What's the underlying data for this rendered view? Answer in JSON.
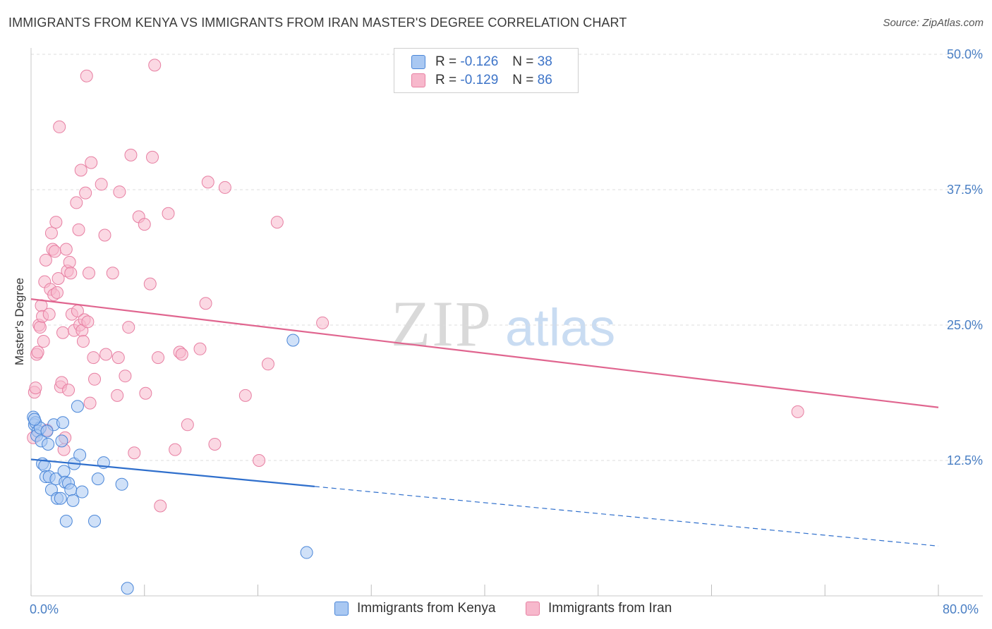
{
  "title": "IMMIGRANTS FROM KENYA VS IMMIGRANTS FROM IRAN MASTER'S DEGREE CORRELATION CHART",
  "source": "Source: ZipAtlas.com",
  "watermark": {
    "zip": "ZIP",
    "atlas": "atlas"
  },
  "legend": {
    "kenya": {
      "r_label": "R =",
      "r_value": "-0.126",
      "n_label": "N =",
      "n_value": "38"
    },
    "iran": {
      "r_label": "R =",
      "r_value": "-0.129",
      "n_label": "N =",
      "n_value": "86"
    }
  },
  "colors": {
    "kenya_fill": "#a9c8f2",
    "kenya_stroke": "#4a86d8",
    "kenya_line": "#2f6fcc",
    "iran_fill": "#f7b8cc",
    "iran_stroke": "#e77fa2",
    "iran_line": "#e0658f",
    "tick_text": "#4a7fc4",
    "grid": "#dddddd"
  },
  "chart_data": {
    "type": "scatter",
    "title": "IMMIGRANTS FROM KENYA VS IMMIGRANTS FROM IRAN MASTER'S DEGREE CORRELATION CHART",
    "xlabel": "",
    "ylabel": "Master's Degree",
    "xlim": [
      0,
      80
    ],
    "ylim": [
      0,
      50
    ],
    "x_tick_labels": [
      "0.0%",
      "80.0%"
    ],
    "y_ticks": [
      12.5,
      25.0,
      37.5,
      50.0
    ],
    "y_tick_labels": [
      "12.5%",
      "25.0%",
      "37.5%",
      "50.0%"
    ],
    "series": [
      {
        "name": "Immigrants from Kenya",
        "points": [
          [
            0.2,
            16.5
          ],
          [
            0.3,
            15.8
          ],
          [
            0.4,
            16.0
          ],
          [
            0.6,
            15.2
          ],
          [
            0.5,
            14.8
          ],
          [
            0.8,
            15.5
          ],
          [
            0.9,
            14.3
          ],
          [
            1.0,
            12.2
          ],
          [
            1.2,
            12.0
          ],
          [
            1.3,
            11.0
          ],
          [
            1.5,
            14.0
          ],
          [
            1.6,
            11.0
          ],
          [
            1.8,
            9.8
          ],
          [
            2.0,
            15.8
          ],
          [
            2.2,
            10.8
          ],
          [
            2.3,
            9.0
          ],
          [
            2.6,
            9.0
          ],
          [
            2.7,
            14.3
          ],
          [
            2.8,
            16.0
          ],
          [
            2.9,
            11.5
          ],
          [
            3.0,
            10.5
          ],
          [
            3.1,
            6.9
          ],
          [
            3.3,
            10.4
          ],
          [
            3.5,
            9.8
          ],
          [
            3.7,
            8.8
          ],
          [
            3.8,
            12.2
          ],
          [
            4.1,
            17.5
          ],
          [
            4.3,
            13.0
          ],
          [
            4.5,
            9.6
          ],
          [
            5.6,
            6.9
          ],
          [
            5.9,
            10.8
          ],
          [
            6.4,
            12.3
          ],
          [
            8.0,
            10.3
          ],
          [
            8.5,
            0.7
          ],
          [
            23.1,
            23.6
          ],
          [
            24.3,
            4.0
          ],
          [
            0.3,
            16.3
          ],
          [
            1.4,
            15.2
          ]
        ],
        "trend": {
          "x0": 0,
          "y0": 12.6,
          "x_solid_end": 25,
          "x1": 80,
          "y1": 4.6
        }
      },
      {
        "name": "Immigrants from Iran",
        "points": [
          [
            0.3,
            18.8
          ],
          [
            0.4,
            19.2
          ],
          [
            0.5,
            22.3
          ],
          [
            0.6,
            22.5
          ],
          [
            0.7,
            25.0
          ],
          [
            0.8,
            24.8
          ],
          [
            0.9,
            26.8
          ],
          [
            1.0,
            25.8
          ],
          [
            1.1,
            23.5
          ],
          [
            1.2,
            29.0
          ],
          [
            1.3,
            31.0
          ],
          [
            1.4,
            15.3
          ],
          [
            1.6,
            26.0
          ],
          [
            1.7,
            28.3
          ],
          [
            1.8,
            33.5
          ],
          [
            1.9,
            32.0
          ],
          [
            2.0,
            27.8
          ],
          [
            2.1,
            31.8
          ],
          [
            2.2,
            34.5
          ],
          [
            2.3,
            28.0
          ],
          [
            2.4,
            29.3
          ],
          [
            2.5,
            43.3
          ],
          [
            2.6,
            19.3
          ],
          [
            2.7,
            19.7
          ],
          [
            2.8,
            24.3
          ],
          [
            2.9,
            13.5
          ],
          [
            3.0,
            14.6
          ],
          [
            3.1,
            32.0
          ],
          [
            3.2,
            30.0
          ],
          [
            3.3,
            19.0
          ],
          [
            3.4,
            30.8
          ],
          [
            3.5,
            29.8
          ],
          [
            3.6,
            26.0
          ],
          [
            3.8,
            24.5
          ],
          [
            4.0,
            36.3
          ],
          [
            4.1,
            26.3
          ],
          [
            4.2,
            33.8
          ],
          [
            4.3,
            25.0
          ],
          [
            4.4,
            39.3
          ],
          [
            4.5,
            24.5
          ],
          [
            4.6,
            23.5
          ],
          [
            4.7,
            25.5
          ],
          [
            4.8,
            37.2
          ],
          [
            4.9,
            48.0
          ],
          [
            5.0,
            25.3
          ],
          [
            5.1,
            29.8
          ],
          [
            5.2,
            17.8
          ],
          [
            5.3,
            40.0
          ],
          [
            5.5,
            22.0
          ],
          [
            5.6,
            20.0
          ],
          [
            6.2,
            38.0
          ],
          [
            6.5,
            33.3
          ],
          [
            6.6,
            22.3
          ],
          [
            7.2,
            29.8
          ],
          [
            7.6,
            18.5
          ],
          [
            7.7,
            22.0
          ],
          [
            7.8,
            37.3
          ],
          [
            8.3,
            20.3
          ],
          [
            8.6,
            24.8
          ],
          [
            8.8,
            40.7
          ],
          [
            9.1,
            13.2
          ],
          [
            9.5,
            35.0
          ],
          [
            10.0,
            34.3
          ],
          [
            10.1,
            18.7
          ],
          [
            10.5,
            28.8
          ],
          [
            10.7,
            40.5
          ],
          [
            11.2,
            22.0
          ],
          [
            11.4,
            8.3
          ],
          [
            12.1,
            35.3
          ],
          [
            12.7,
            13.5
          ],
          [
            13.1,
            22.5
          ],
          [
            13.3,
            22.3
          ],
          [
            13.8,
            15.8
          ],
          [
            14.9,
            22.8
          ],
          [
            15.4,
            27.0
          ],
          [
            15.6,
            38.2
          ],
          [
            16.2,
            14.0
          ],
          [
            17.1,
            37.7
          ],
          [
            18.9,
            18.5
          ],
          [
            20.1,
            12.5
          ],
          [
            20.9,
            21.4
          ],
          [
            21.7,
            34.5
          ],
          [
            10.9,
            49.0
          ],
          [
            25.7,
            25.2
          ],
          [
            67.6,
            17.0
          ],
          [
            0.2,
            14.6
          ]
        ],
        "trend": {
          "x0": 0,
          "y0": 27.4,
          "x1": 80,
          "y1": 17.4
        }
      }
    ]
  },
  "bottom_legend": {
    "kenya_label": "Immigrants from Kenya",
    "iran_label": "Immigrants from Iran"
  }
}
